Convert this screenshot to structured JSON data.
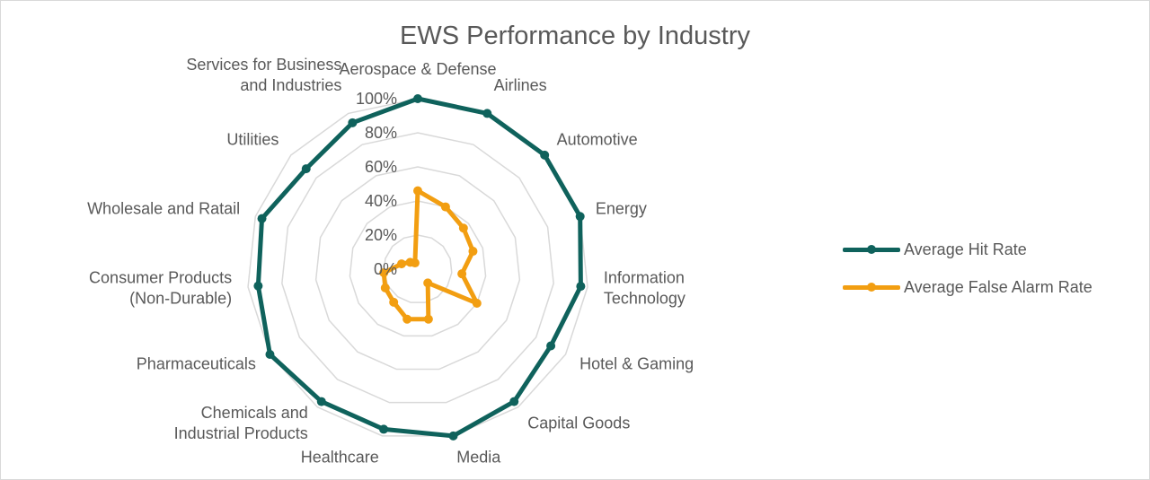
{
  "chart_data": {
    "type": "radar",
    "title": "EWS Performance by Industry",
    "categories": [
      "Aerospace & Defense",
      "Airlines",
      "Automotive",
      "Energy",
      "Information\nTechnology",
      "Hotel & Gaming",
      "Capital Goods",
      "Media",
      "Healthcare",
      "Chemicals and\nIndustrial Products",
      "Pharmaceuticals",
      "Consumer Products\n(Non-Durable)",
      "Wholesale and Ratail",
      "Utilities",
      "Services for Business\nand Industries"
    ],
    "r_ticks": [
      "0%",
      "20%",
      "40%",
      "60%",
      "80%",
      "100%"
    ],
    "r_range": [
      0,
      100
    ],
    "grid": true,
    "legend_position": "right",
    "series": [
      {
        "name": "Average Hit Rate",
        "color": "#0f625c",
        "values": [
          100,
          100,
          100,
          100,
          96,
          90,
          96,
          100,
          96,
          96,
          100,
          94,
          96,
          88,
          94
        ]
      },
      {
        "name": "Average False Alarm Rate",
        "color": "#f29e11",
        "values": [
          46,
          40,
          36,
          34,
          26,
          40,
          10,
          30,
          30,
          24,
          22,
          20,
          10,
          6,
          4
        ]
      }
    ]
  }
}
